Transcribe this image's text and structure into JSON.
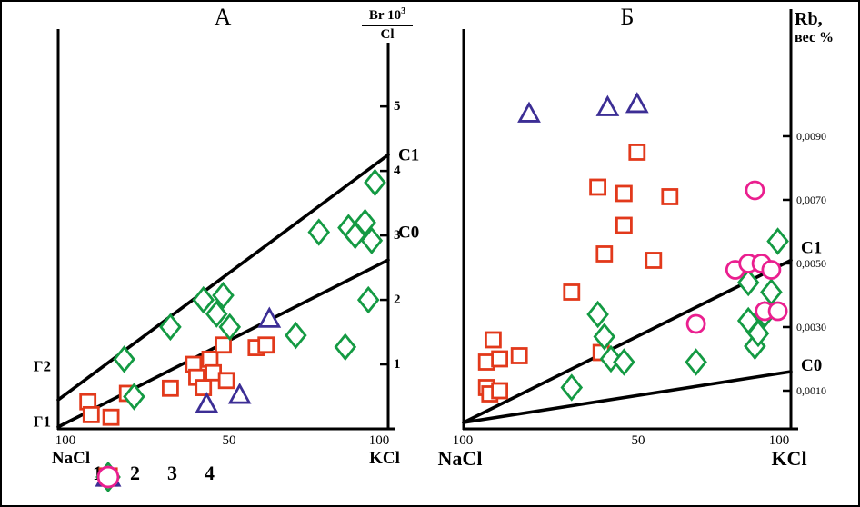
{
  "figure": {
    "background": "#ffffff",
    "border_color": "#000000",
    "line_color": "#000000"
  },
  "legend": {
    "items": [
      {
        "label": "1",
        "marker": "square",
        "color": "#e2391b"
      },
      {
        "label": "2",
        "marker": "triangle",
        "color": "#3c2e95"
      },
      {
        "label": "3",
        "marker": "diamond",
        "color": "#149a43"
      },
      {
        "label": "4",
        "marker": "circle",
        "color": "#ea1f8f"
      }
    ]
  },
  "chart_data": [
    {
      "id": "A",
      "type": "scatter",
      "title": "А",
      "x_axis": {
        "range": [
          0,
          100
        ],
        "left_tick": "100",
        "mid_tick": "50",
        "right_tick": "100",
        "left_label": "NaCl",
        "right_label": "KCl"
      },
      "y_axis": {
        "title_numerator": "Br 10",
        "title_sup": "3",
        "title_denominator": "Cl",
        "side": "right",
        "tick_values": [
          1,
          2,
          3,
          4,
          5
        ],
        "tick_labels": [
          "1",
          "2",
          "3",
          "4",
          "5"
        ],
        "range": [
          0,
          6.2
        ]
      },
      "ref_lines": [
        {
          "label": "С1",
          "from": [
            0,
            0.45
          ],
          "to": [
            100,
            4.25
          ],
          "label_y": 4.25
        },
        {
          "label": "С0",
          "from": [
            0,
            0.03
          ],
          "to": [
            100,
            2.62
          ],
          "label_y": 3.05
        }
      ],
      "edge_labels": [
        {
          "text": "Г2",
          "y": 0.98
        },
        {
          "text": "Г1",
          "y": 0.12
        }
      ],
      "series": [
        {
          "legend": "1",
          "marker": "square",
          "color": "#e2391b",
          "points": [
            [
              9,
              0.42
            ],
            [
              10,
              0.22
            ],
            [
              16,
              0.18
            ],
            [
              21,
              0.55
            ],
            [
              34,
              0.63
            ],
            [
              41,
              1.0
            ],
            [
              42,
              0.8
            ],
            [
              44,
              0.64
            ],
            [
              46,
              1.08
            ],
            [
              47,
              0.87
            ],
            [
              50,
              1.3
            ],
            [
              51,
              0.75
            ],
            [
              60,
              1.26
            ],
            [
              63,
              1.3
            ]
          ]
        },
        {
          "legend": "2",
          "marker": "triangle",
          "color": "#3c2e95",
          "points": [
            [
              45,
              0.38
            ],
            [
              55,
              0.52
            ],
            [
              64,
              1.7
            ]
          ]
        },
        {
          "legend": "3",
          "marker": "diamond",
          "color": "#149a43",
          "points": [
            [
              20,
              1.08
            ],
            [
              23,
              0.5
            ],
            [
              34,
              1.58
            ],
            [
              44,
              2.0
            ],
            [
              48,
              1.78
            ],
            [
              50,
              2.07
            ],
            [
              52,
              1.58
            ],
            [
              72,
              1.45
            ],
            [
              79,
              3.05
            ],
            [
              87,
              1.27
            ],
            [
              88,
              3.12
            ],
            [
              90,
              3.0
            ],
            [
              93,
              3.2
            ],
            [
              94,
              2.0
            ],
            [
              95,
              2.92
            ],
            [
              96,
              3.82
            ]
          ]
        }
      ]
    },
    {
      "id": "B",
      "type": "scatter",
      "title": "Б",
      "x_axis": {
        "range": [
          0,
          100
        ],
        "left_tick": "100",
        "mid_tick": "50",
        "right_tick": "100",
        "left_label": "NaCl",
        "right_label": "KCl"
      },
      "y_axis": {
        "title_line1": "Rb,",
        "title_line2": "вес %",
        "side": "right",
        "tick_values": [
          0.001,
          0.003,
          0.005,
          0.007,
          0.009
        ],
        "tick_labels": [
          "0,0010",
          "0,0030",
          "0,0050",
          "0,0070",
          "0,0090"
        ],
        "range": [
          -0.0002,
          0.01237
        ]
      },
      "ref_lines": [
        {
          "label": "С1",
          "from": [
            0,
            0.0
          ],
          "to": [
            100,
            0.0051
          ],
          "label_y": 0.0055
        },
        {
          "label": "С0",
          "from": [
            0,
            0.0
          ],
          "to": [
            100,
            0.0016
          ],
          "label_y": 0.0018
        }
      ],
      "edge_labels": [],
      "series": [
        {
          "legend": "1",
          "marker": "square",
          "color": "#e2391b",
          "points": [
            [
              7,
              0.0019
            ],
            [
              7,
              0.0011
            ],
            [
              8,
              0.0009
            ],
            [
              9,
              0.0026
            ],
            [
              11,
              0.002
            ],
            [
              11,
              0.001
            ],
            [
              17,
              0.0021
            ],
            [
              33,
              0.0041
            ],
            [
              41,
              0.0074
            ],
            [
              42,
              0.0022
            ],
            [
              43,
              0.0053
            ],
            [
              49,
              0.0072
            ],
            [
              49,
              0.0062
            ],
            [
              53,
              0.0085
            ],
            [
              58,
              0.0051
            ],
            [
              63,
              0.0071
            ]
          ]
        },
        {
          "legend": "2",
          "marker": "triangle",
          "color": "#3c2e95",
          "points": [
            [
              20,
              0.0097
            ],
            [
              44,
              0.0099
            ],
            [
              53,
              0.01
            ]
          ]
        },
        {
          "legend": "3",
          "marker": "diamond",
          "color": "#149a43",
          "points": [
            [
              33,
              0.0011
            ],
            [
              41,
              0.0034
            ],
            [
              43,
              0.0027
            ],
            [
              45,
              0.002
            ],
            [
              49,
              0.0019
            ],
            [
              71,
              0.0019
            ],
            [
              87,
              0.0044
            ],
            [
              87,
              0.0032
            ],
            [
              89,
              0.0024
            ],
            [
              90,
              0.0028
            ],
            [
              92,
              0.0034
            ],
            [
              94,
              0.0041
            ],
            [
              96,
              0.0057
            ]
          ]
        },
        {
          "legend": "4",
          "marker": "circle",
          "color": "#ea1f8f",
          "points": [
            [
              71,
              0.0031
            ],
            [
              83,
              0.0048
            ],
            [
              87,
              0.005
            ],
            [
              89,
              0.0073
            ],
            [
              91,
              0.005
            ],
            [
              92,
              0.0035
            ],
            [
              94,
              0.0048
            ],
            [
              96,
              0.0035
            ]
          ]
        }
      ]
    }
  ]
}
